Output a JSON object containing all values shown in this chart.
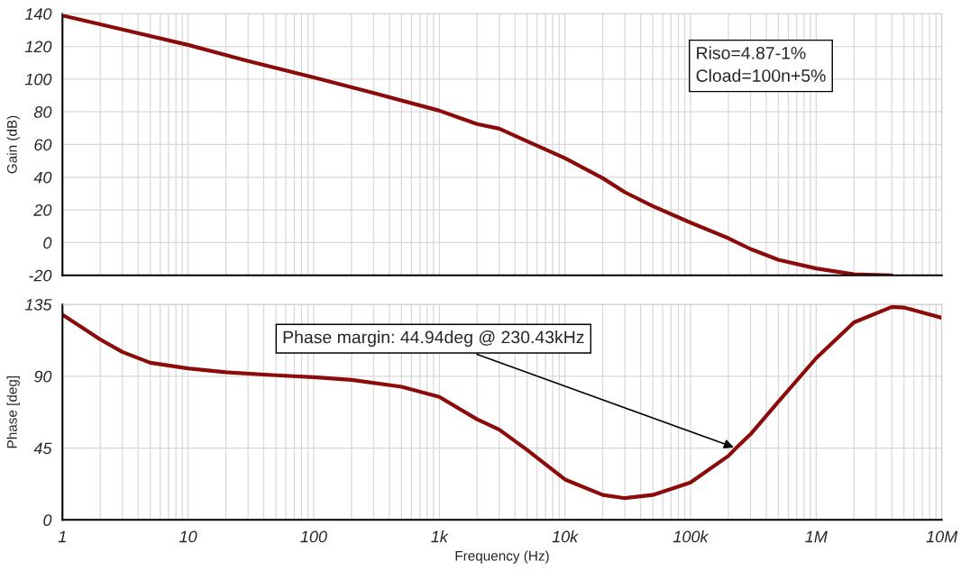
{
  "chart_data": [
    {
      "type": "line",
      "ylabel": "Gain (dB)",
      "log": "x",
      "xlim": [
        1,
        10000000
      ],
      "ylim": [
        -20,
        140
      ],
      "yticks": [
        -20,
        0,
        20,
        40,
        60,
        80,
        100,
        120,
        140
      ],
      "tick_labels": "y",
      "grid": true,
      "annotations": [
        "Riso=4.87-1%\nCload=100n+5%"
      ],
      "series": [
        {
          "color": "#8b0a0a",
          "x": [
            1,
            3,
            10,
            30,
            100,
            300,
            1000,
            2000,
            3000,
            5000,
            10000,
            20000,
            30000,
            50000,
            100000,
            200000,
            300000,
            500000,
            1000000,
            2000000,
            4000000
          ],
          "values": [
            138.9,
            130.3,
            120.9,
            111,
            101,
            91.5,
            80.7,
            72.5,
            69.7,
            62,
            51.7,
            39.4,
            30.8,
            22.3,
            12.2,
            2.7,
            -3.9,
            -10.5,
            -15.8,
            -19.4,
            -20
          ]
        }
      ]
    },
    {
      "type": "line",
      "xlabel": "Frequency (Hz)",
      "ylabel": "Phase [deg]",
      "log": "x",
      "xlim": [
        1,
        10000000
      ],
      "ylim": [
        0,
        135
      ],
      "xticks": [
        1,
        10,
        100,
        {
          "value": 1000,
          "label": "1k"
        },
        {
          "value": 10000,
          "label": "10k"
        },
        {
          "value": 100000,
          "label": "100k"
        },
        {
          "value": 1000000,
          "label": "1M"
        },
        {
          "value": 10000000,
          "label": "10M"
        }
      ],
      "yticks": [
        0,
        45,
        90,
        135
      ],
      "grid": true,
      "annotations": [
        {
          "text": "Phase margin: 44.94deg @ 230.43kHz",
          "x": 230430,
          "y": 44.94
        }
      ],
      "series": [
        {
          "color": "#8b0a0a",
          "x": [
            1,
            2,
            3,
            5,
            10,
            20,
            50,
            100,
            200,
            500,
            1000,
            2000,
            3000,
            5000,
            10000,
            20000,
            30000,
            50000,
            100000,
            200000,
            230430,
            300000,
            500000,
            1000000,
            2000000,
            4000000,
            5000000,
            10000000
          ],
          "values": [
            128.6,
            113,
            105.2,
            98.4,
            94.9,
            92.5,
            90.6,
            89.4,
            87.7,
            83.4,
            77,
            63,
            56.5,
            43.8,
            25.3,
            15.6,
            13.6,
            15.6,
            23.4,
            40,
            45,
            53.6,
            74,
            101.3,
            123.7,
            133.4,
            133,
            126.6
          ]
        }
      ]
    }
  ]
}
